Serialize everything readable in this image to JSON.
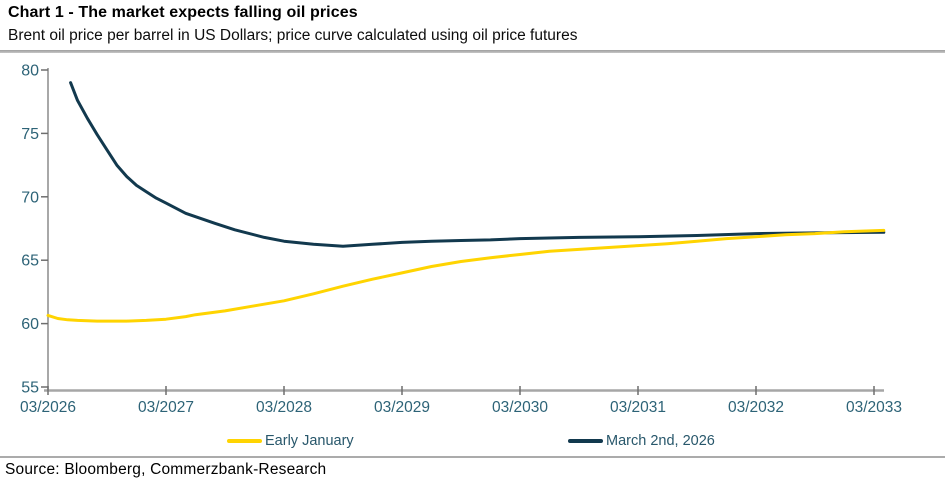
{
  "header": {
    "title": "Chart 1 - The market expects falling oil prices",
    "subtitle": "Brent oil price per barrel in US Dollars; price curve calculated using oil price futures"
  },
  "footer": {
    "source": "Source: Bloomberg, Commerzbank-Research"
  },
  "colors": {
    "early_january_line": "#FFD401",
    "march_line": "#12394E",
    "axis_label_text": "#2D6377",
    "legend_text": "#28576B",
    "x_axis_line": "#A6A6A6",
    "y_axis_line": "#8C8C8C",
    "tick_mark": "#6E6E6E",
    "divider": "#ABABAB"
  },
  "chart_data": {
    "type": "line",
    "title": "Chart 1 - The market expects falling oil prices",
    "subtitle": "Brent oil price per barrel in US Dollars; price curve calculated using oil price futures",
    "xlabel": "",
    "ylabel": "",
    "ylim": [
      55,
      80
    ],
    "xlim_months": [
      0,
      85
    ],
    "grid": false,
    "legend_position": "bottom",
    "y_ticks": [
      55,
      60,
      65,
      70,
      75,
      80
    ],
    "x_ticks": [
      {
        "pos": 0,
        "label": "03/2026"
      },
      {
        "pos": 12,
        "label": "03/2027"
      },
      {
        "pos": 24,
        "label": "03/2028"
      },
      {
        "pos": 36,
        "label": "03/2029"
      },
      {
        "pos": 48,
        "label": "03/2030"
      },
      {
        "pos": 60,
        "label": "03/2031"
      },
      {
        "pos": 72,
        "label": "03/2032"
      },
      {
        "pos": 84,
        "label": "03/2033"
      }
    ],
    "x_unit": "months since 03/2026",
    "series": [
      {
        "name": "March 2nd, 2026",
        "color": "#12394E",
        "points": [
          [
            2.3,
            79.0
          ],
          [
            3,
            77.6
          ],
          [
            4,
            76.2
          ],
          [
            5,
            74.9
          ],
          [
            6,
            73.7
          ],
          [
            7,
            72.5
          ],
          [
            8,
            71.6
          ],
          [
            9,
            70.9
          ],
          [
            10,
            70.4
          ],
          [
            11,
            69.9
          ],
          [
            12,
            69.5
          ],
          [
            14,
            68.7
          ],
          [
            17,
            67.9
          ],
          [
            19,
            67.4
          ],
          [
            22,
            66.8
          ],
          [
            24,
            66.5
          ],
          [
            27,
            66.25
          ],
          [
            30,
            66.1
          ],
          [
            33,
            66.25
          ],
          [
            36,
            66.4
          ],
          [
            39,
            66.5
          ],
          [
            42,
            66.55
          ],
          [
            45,
            66.6
          ],
          [
            48,
            66.7
          ],
          [
            54,
            66.8
          ],
          [
            60,
            66.85
          ],
          [
            66,
            66.95
          ],
          [
            72,
            67.1
          ],
          [
            78,
            67.15
          ],
          [
            85,
            67.2
          ]
        ]
      },
      {
        "name": "Early January",
        "color": "#FFD401",
        "points": [
          [
            0,
            60.65
          ],
          [
            1,
            60.4
          ],
          [
            2,
            60.3
          ],
          [
            3,
            60.25
          ],
          [
            5,
            60.2
          ],
          [
            8,
            60.2
          ],
          [
            10,
            60.25
          ],
          [
            12,
            60.35
          ],
          [
            14,
            60.55
          ],
          [
            15,
            60.7
          ],
          [
            18,
            61.0
          ],
          [
            21,
            61.4
          ],
          [
            24,
            61.8
          ],
          [
            27,
            62.35
          ],
          [
            30,
            62.95
          ],
          [
            33,
            63.5
          ],
          [
            36,
            64.0
          ],
          [
            39,
            64.5
          ],
          [
            42,
            64.9
          ],
          [
            45,
            65.2
          ],
          [
            48,
            65.45
          ],
          [
            51,
            65.7
          ],
          [
            54,
            65.85
          ],
          [
            57,
            66.0
          ],
          [
            60,
            66.15
          ],
          [
            63,
            66.3
          ],
          [
            66,
            66.5
          ],
          [
            69,
            66.7
          ],
          [
            72,
            66.85
          ],
          [
            75,
            67.0
          ],
          [
            78,
            67.1
          ],
          [
            81,
            67.25
          ],
          [
            85,
            67.35
          ]
        ]
      }
    ]
  }
}
